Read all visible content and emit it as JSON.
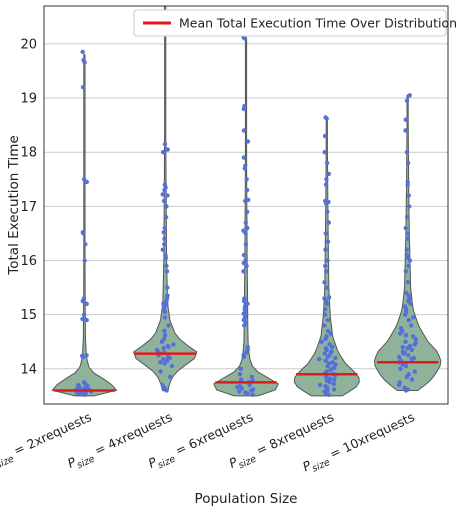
{
  "chart_data": {
    "type": "violin",
    "xlabel": "Population Size",
    "ylabel": "Total Execution Time",
    "ylim": [
      13.35,
      20.7
    ],
    "yticks": [
      14,
      15,
      16,
      17,
      18,
      19,
      20
    ],
    "grid": "horizontal",
    "legend_position": "top-right",
    "legend": [
      {
        "label": "Mean Total Execution Time Over Distribution",
        "color": "#e31a1c"
      }
    ],
    "colors": {
      "violin_fill": "#8fb39a",
      "violin_edge": "#555555",
      "points": "#5570d8",
      "mean_line": "#e31a1c",
      "grid": "#cccccc"
    },
    "categories": [
      {
        "sub": "size",
        "rest": " = 2xrequests"
      },
      {
        "sub": "size",
        "rest": " = 4xrequests"
      },
      {
        "sub": "size",
        "rest": " = 6xrequests"
      },
      {
        "sub": "size",
        "rest": " = 8xrequests"
      },
      {
        "sub": "size",
        "rest": " = 10xrequests"
      }
    ],
    "category_prefix": "P",
    "series": [
      {
        "mean": 13.6,
        "range": [
          13.5,
          19.8
        ],
        "profile": [
          [
            13.5,
            0.28
          ],
          [
            13.56,
            0.78
          ],
          [
            13.62,
            1.0
          ],
          [
            13.7,
            0.82
          ],
          [
            13.8,
            0.6
          ],
          [
            13.9,
            0.32
          ],
          [
            14.0,
            0.15
          ],
          [
            14.2,
            0.06
          ],
          [
            14.6,
            0.03
          ],
          [
            15.5,
            0.02
          ],
          [
            17.0,
            0.015
          ],
          [
            19.8,
            0.005
          ]
        ],
        "points": [
          13.52,
          13.53,
          13.54,
          13.55,
          13.56,
          13.56,
          13.57,
          13.58,
          13.58,
          13.59,
          13.6,
          13.61,
          13.62,
          13.63,
          13.64,
          13.66,
          13.68,
          13.7,
          13.72,
          13.75,
          14.22,
          14.24,
          14.25,
          14.9,
          14.92,
          15.0,
          15.2,
          15.25,
          15.3,
          16.0,
          16.3,
          16.5,
          16.52,
          17.45,
          17.5,
          19.2,
          19.66,
          19.7,
          19.85
        ]
      },
      {
        "mean": 14.28,
        "range": [
          13.6,
          20.7
        ],
        "profile": [
          [
            13.6,
            0.08
          ],
          [
            13.8,
            0.16
          ],
          [
            14.0,
            0.42
          ],
          [
            14.15,
            0.8
          ],
          [
            14.28,
            1.0
          ],
          [
            14.4,
            0.72
          ],
          [
            14.6,
            0.32
          ],
          [
            14.9,
            0.14
          ],
          [
            15.2,
            0.07
          ],
          [
            16.0,
            0.04
          ],
          [
            18.0,
            0.02
          ],
          [
            20.7,
            0.008
          ]
        ],
        "points": [
          13.6,
          13.62,
          13.65,
          13.7,
          13.85,
          13.95,
          14.05,
          14.1,
          14.12,
          14.15,
          14.18,
          14.2,
          14.22,
          14.25,
          14.28,
          14.3,
          14.32,
          14.35,
          14.38,
          14.4,
          14.42,
          14.45,
          14.5,
          14.55,
          14.62,
          14.7,
          14.8,
          14.95,
          15.05,
          15.1,
          15.15,
          15.18,
          15.2,
          15.22,
          15.25,
          15.3,
          15.35,
          15.5,
          15.8,
          15.9,
          16.05,
          16.1,
          16.2,
          16.3,
          16.4,
          16.52,
          16.6,
          16.8,
          17.0,
          17.1,
          17.2,
          17.22,
          17.3,
          17.35,
          17.4,
          18.0,
          18.05,
          18.15
        ]
      },
      {
        "mean": 13.75,
        "range": [
          13.5,
          20.1
        ],
        "profile": [
          [
            13.5,
            0.35
          ],
          [
            13.6,
            0.85
          ],
          [
            13.7,
            1.0
          ],
          [
            13.8,
            0.75
          ],
          [
            13.9,
            0.45
          ],
          [
            14.0,
            0.22
          ],
          [
            14.2,
            0.1
          ],
          [
            14.5,
            0.06
          ],
          [
            15.0,
            0.05
          ],
          [
            16.0,
            0.035
          ],
          [
            17.5,
            0.02
          ],
          [
            20.1,
            0.006
          ]
        ],
        "points": [
          13.52,
          13.54,
          13.56,
          13.58,
          13.6,
          13.62,
          13.64,
          13.66,
          13.68,
          13.7,
          13.72,
          13.75,
          13.78,
          13.8,
          13.85,
          13.9,
          14.0,
          14.22,
          14.25,
          14.3,
          14.35,
          14.4,
          14.8,
          14.85,
          14.9,
          14.95,
          15.0,
          15.02,
          15.05,
          15.1,
          15.15,
          15.2,
          15.25,
          15.3,
          15.8,
          15.9,
          15.95,
          16.0,
          16.1,
          16.3,
          16.5,
          16.55,
          16.6,
          16.7,
          16.9,
          17.1,
          17.12,
          17.3,
          17.5,
          17.7,
          17.75,
          17.9,
          18.2,
          18.4,
          18.8,
          18.85,
          20.1,
          20.12
        ]
      },
      {
        "mean": 13.9,
        "range": [
          13.5,
          18.65
        ],
        "profile": [
          [
            13.5,
            0.45
          ],
          [
            13.65,
            0.85
          ],
          [
            13.8,
            1.0
          ],
          [
            13.95,
            0.8
          ],
          [
            14.1,
            0.55
          ],
          [
            14.3,
            0.34
          ],
          [
            14.6,
            0.17
          ],
          [
            15.0,
            0.1
          ],
          [
            15.5,
            0.06
          ],
          [
            16.5,
            0.04
          ],
          [
            17.5,
            0.025
          ],
          [
            18.65,
            0.01
          ]
        ],
        "points": [
          13.52,
          13.55,
          13.58,
          13.6,
          13.62,
          13.65,
          13.68,
          13.7,
          13.72,
          13.75,
          13.78,
          13.8,
          13.82,
          13.85,
          13.88,
          13.9,
          13.92,
          13.95,
          13.98,
          14.0,
          14.02,
          14.05,
          14.08,
          14.1,
          14.12,
          14.15,
          14.18,
          14.2,
          14.22,
          14.25,
          14.28,
          14.3,
          14.32,
          14.35,
          14.38,
          14.4,
          14.45,
          14.5,
          14.55,
          14.6,
          14.65,
          14.7,
          14.8,
          14.9,
          15.0,
          15.1,
          15.2,
          15.25,
          15.3,
          15.32,
          15.5,
          15.6,
          15.8,
          15.9,
          16.0,
          16.2,
          16.35,
          16.5,
          16.7,
          16.9,
          17.05,
          17.08,
          17.1,
          17.4,
          17.5,
          17.6,
          17.8,
          18.0,
          18.3,
          18.62,
          18.64
        ]
      },
      {
        "mean": 14.12,
        "range": [
          13.6,
          19.05
        ],
        "profile": [
          [
            13.6,
            0.3
          ],
          [
            13.75,
            0.62
          ],
          [
            13.9,
            0.82
          ],
          [
            14.1,
            1.0
          ],
          [
            14.3,
            0.9
          ],
          [
            14.5,
            0.6
          ],
          [
            14.8,
            0.32
          ],
          [
            15.1,
            0.16
          ],
          [
            15.5,
            0.09
          ],
          [
            16.5,
            0.05
          ],
          [
            17.5,
            0.03
          ],
          [
            19.05,
            0.012
          ]
        ],
        "points": [
          13.6,
          13.62,
          13.65,
          13.7,
          13.75,
          13.8,
          13.85,
          13.9,
          13.95,
          14.0,
          14.05,
          14.08,
          14.1,
          14.12,
          14.15,
          14.18,
          14.2,
          14.22,
          14.25,
          14.28,
          14.3,
          14.32,
          14.35,
          14.38,
          14.4,
          14.42,
          14.45,
          14.48,
          14.5,
          14.55,
          14.6,
          14.62,
          14.65,
          14.7,
          14.75,
          14.8,
          14.9,
          14.95,
          15.0,
          15.05,
          15.1,
          15.15,
          15.2,
          15.25,
          15.3,
          15.35,
          15.4,
          15.6,
          15.8,
          15.9,
          16.0,
          16.05,
          16.1,
          16.2,
          16.4,
          16.5,
          16.6,
          16.8,
          17.0,
          17.2,
          17.4,
          17.45,
          17.8,
          18.0,
          18.4,
          18.6,
          18.95,
          19.05
        ]
      }
    ]
  }
}
